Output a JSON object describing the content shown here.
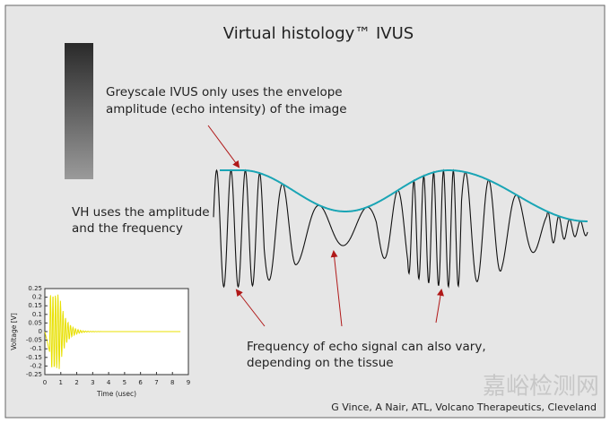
{
  "title": "Virtual histology™ IVUS",
  "greyscale_note": [
    "Greyscale IVUS only uses the envelope",
    "amplitude (echo intensity) of the image"
  ],
  "vh_note": [
    "VH uses the amplitude",
    "and the frequency"
  ],
  "frequency_note": [
    "Frequency of echo signal can also vary,",
    "depending on the tissue"
  ],
  "credit": "G Vince, A Nair, ATL, Volcano Therapeutics, Cleveland",
  "watermark": "嘉峪检测网",
  "inset": {
    "y_label": "Voltage [V]",
    "x_label": "Time (usec)",
    "ylim": [
      -0.25,
      0.25
    ],
    "yticks": [
      0.25,
      0.2,
      0.15,
      0.1,
      0.05,
      0,
      -0.05,
      -0.1,
      -0.15,
      -0.2,
      -0.25
    ],
    "xlim": [
      0,
      9
    ],
    "xticks": [
      0,
      1,
      2,
      3,
      4,
      5,
      6,
      7,
      8,
      9
    ]
  }
}
